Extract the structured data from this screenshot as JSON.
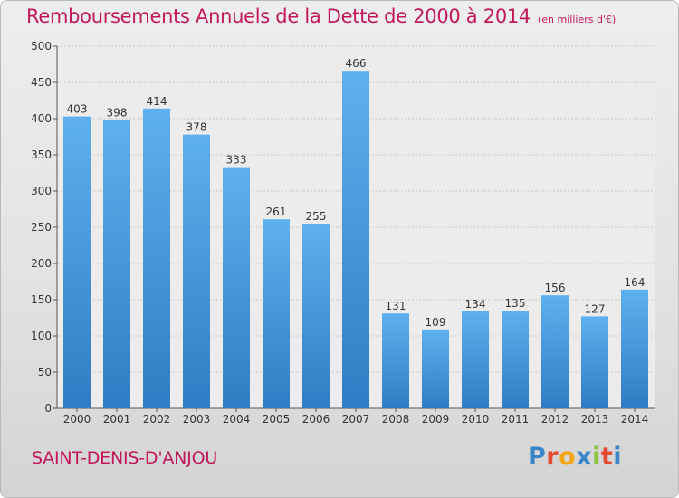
{
  "chart_data": {
    "type": "bar",
    "title": "Remboursements Annuels de la Dette de 2000 à 2014",
    "subtitle": "(en milliers d'€)",
    "categories": [
      "2000",
      "2001",
      "2002",
      "2003",
      "2004",
      "2005",
      "2006",
      "2007",
      "2008",
      "2009",
      "2010",
      "2011",
      "2012",
      "2013",
      "2014"
    ],
    "values": [
      403,
      398,
      414,
      378,
      333,
      261,
      255,
      466,
      131,
      109,
      134,
      135,
      156,
      127,
      164
    ],
    "ylim": [
      0,
      500
    ],
    "yticks": [
      0,
      50,
      100,
      150,
      200,
      250,
      300,
      350,
      400,
      450,
      500
    ],
    "grid": true,
    "bar_color": "#4d9fe0"
  },
  "footer": {
    "city": "SAINT-DENIS-D'ANJOU",
    "logo_letters": [
      "P",
      "r",
      "o",
      "x",
      "i",
      "t",
      "i"
    ],
    "logo_colors": [
      "#3a84c9",
      "#e34a2f",
      "#f2a516",
      "#3a84c9",
      "#8cc63f",
      "#e34a2f",
      "#3a84c9"
    ]
  }
}
